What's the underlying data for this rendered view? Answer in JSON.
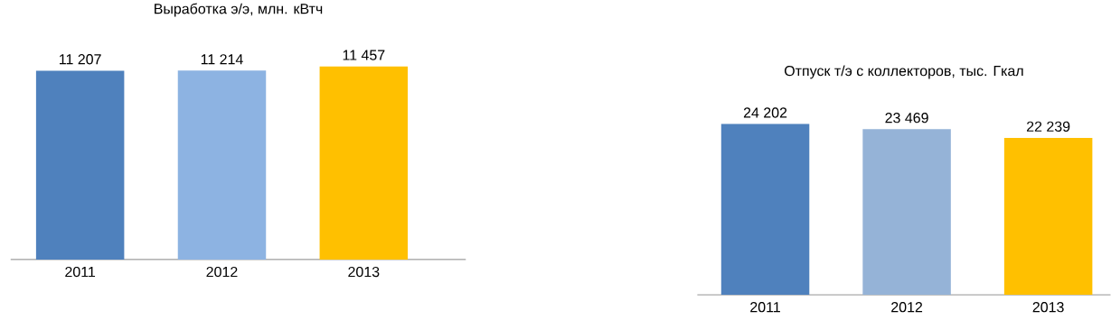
{
  "chart_data": [
    {
      "type": "bar",
      "title": "Выработка э/э, млн. кВтч",
      "categories": [
        "2011",
        "2012",
        "2013"
      ],
      "values": [
        11207,
        11214,
        11457
      ],
      "colors": [
        "#4f81bd",
        "#8db3e2",
        "#ffc000"
      ],
      "value_labels": [
        "11 207",
        "11 214",
        "11 457"
      ]
    },
    {
      "type": "bar",
      "title": "Отпуск т/э с коллекторов, тыс. Гкал",
      "categories": [
        "2011",
        "2012",
        "2013"
      ],
      "values": [
        24202,
        23469,
        22239
      ],
      "colors": [
        "#4f81bd",
        "#95b3d7",
        "#ffc000"
      ],
      "value_labels": [
        "24 202",
        "23 469",
        "22 239"
      ]
    }
  ]
}
